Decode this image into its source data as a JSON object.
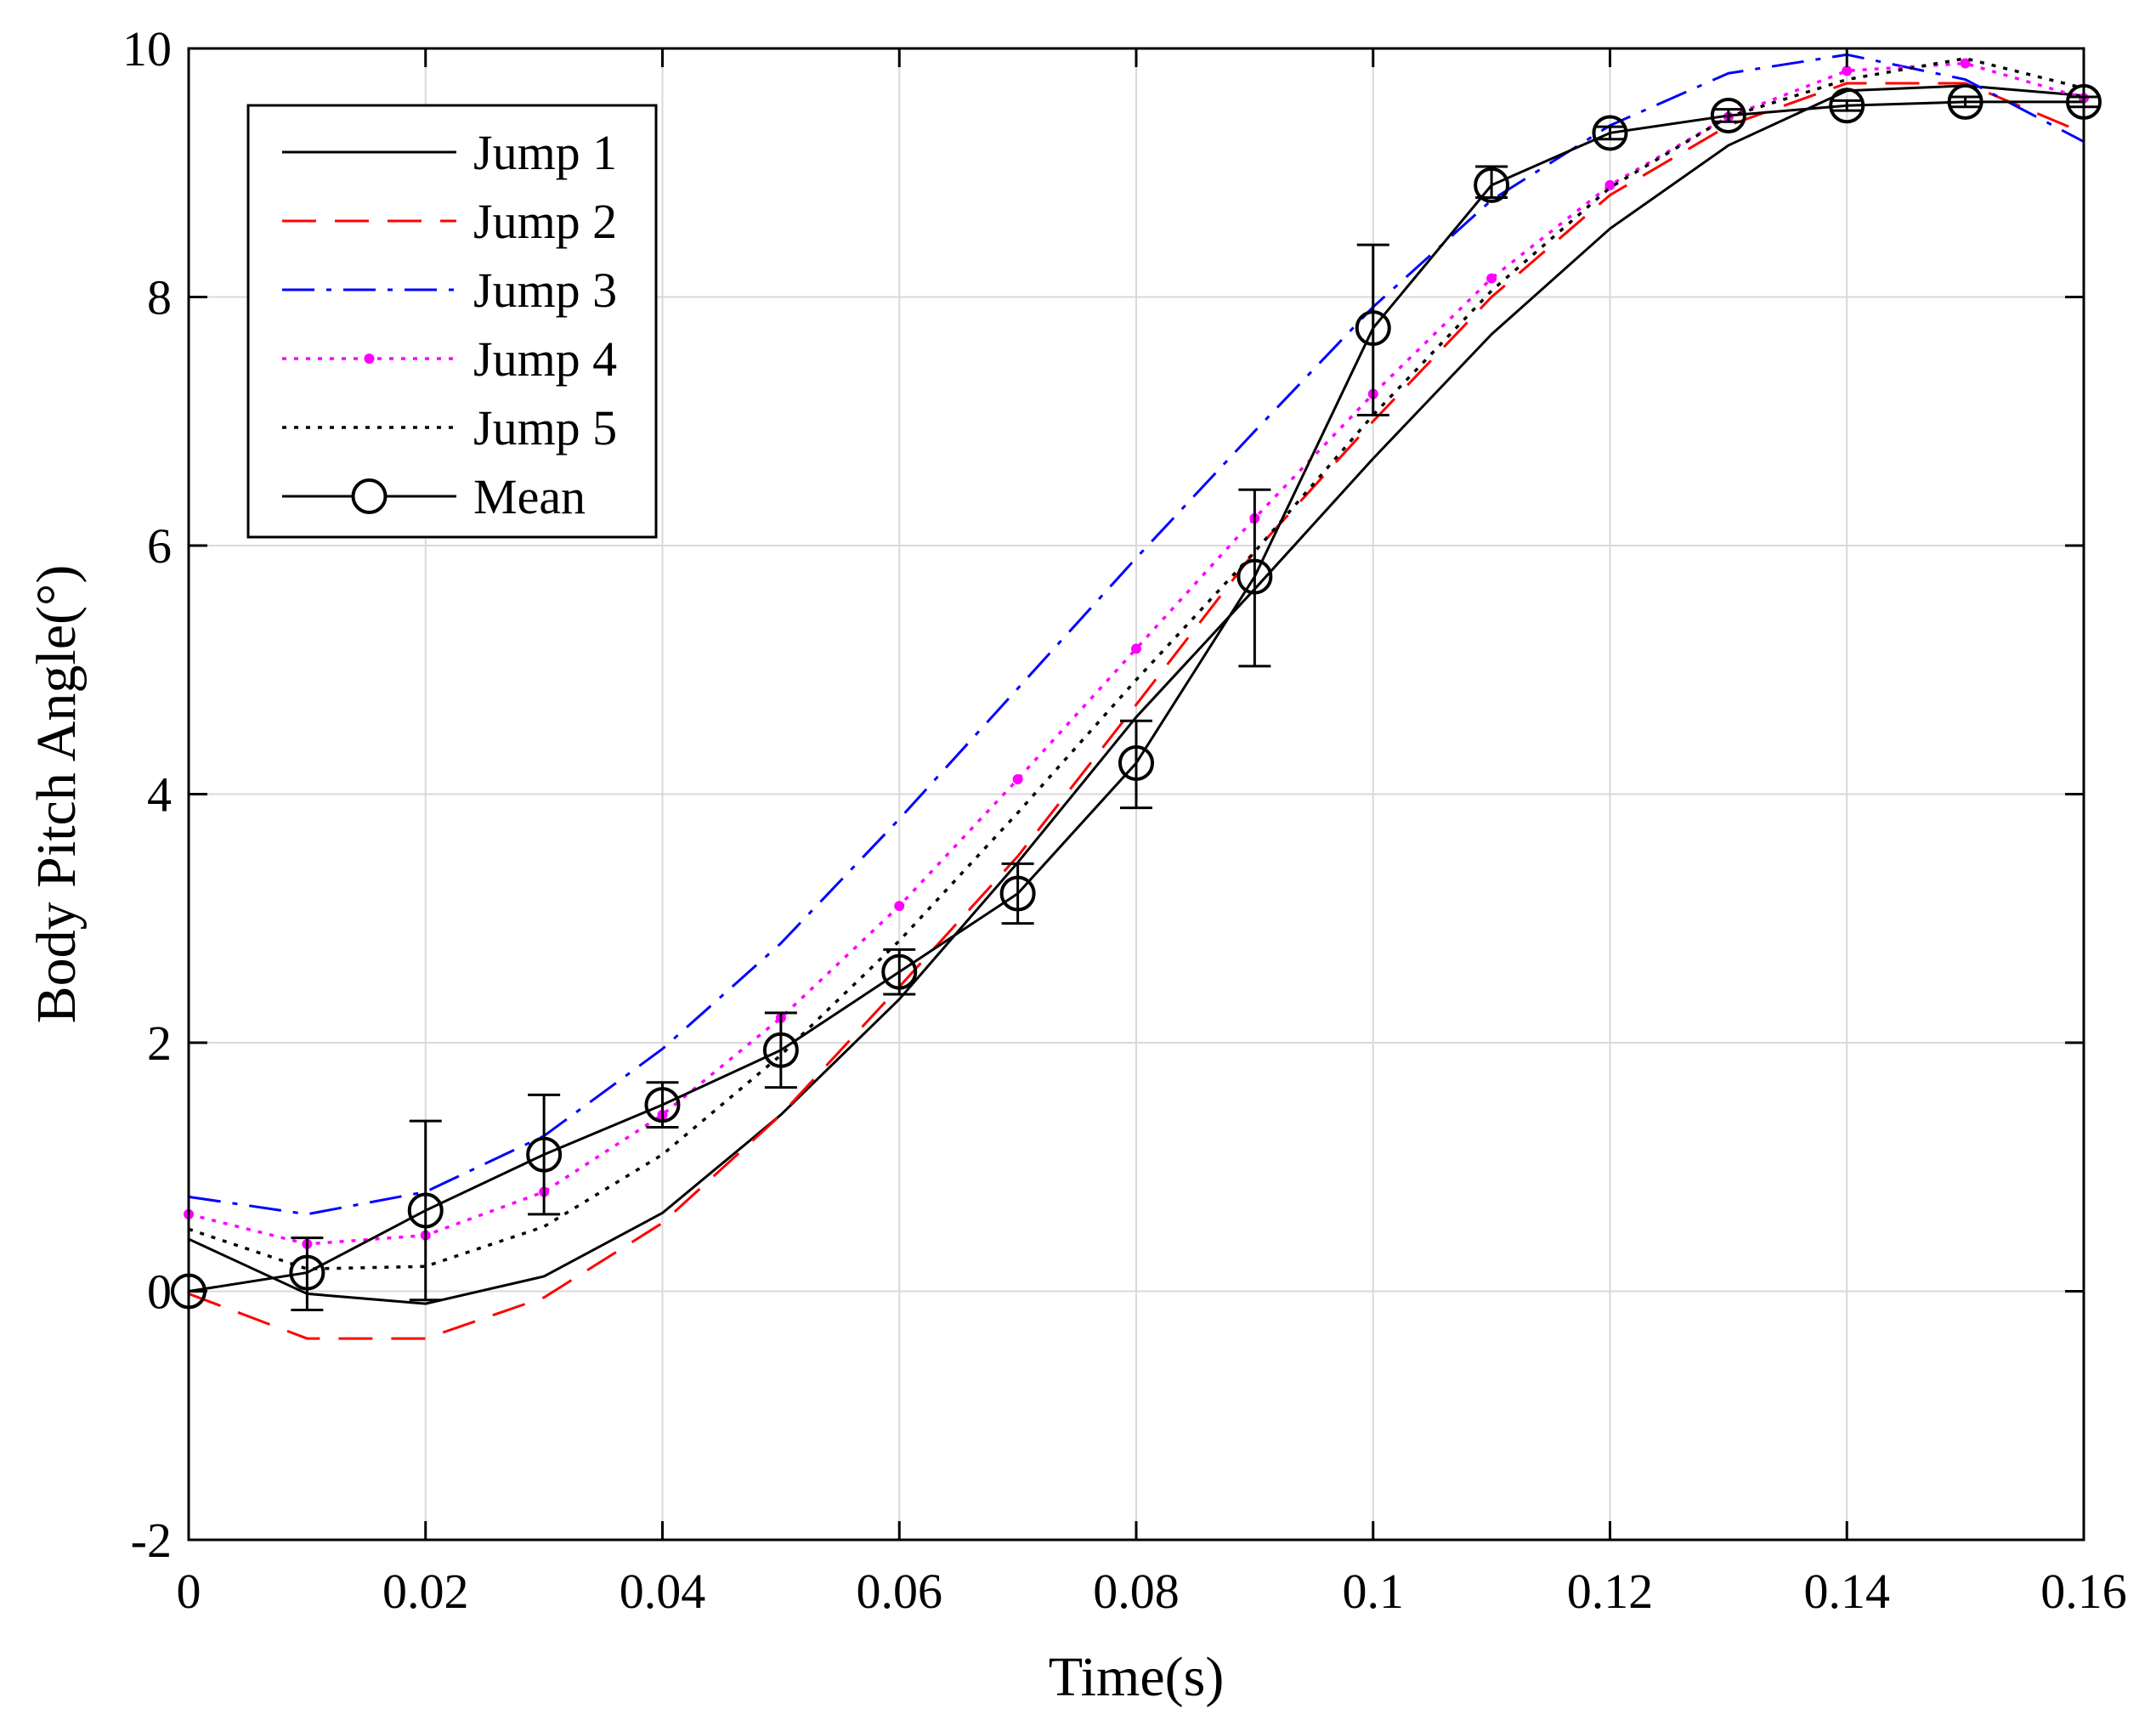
{
  "chart_data": {
    "type": "line",
    "title": "",
    "xlabel": "Time(s)",
    "ylabel": "Body Pitch Angle(°)",
    "xlim": [
      0,
      0.16
    ],
    "ylim": [
      -2,
      10
    ],
    "grid": true,
    "legend_position": "top-left",
    "x": [
      0,
      0.01,
      0.02,
      0.03,
      0.04,
      0.05,
      0.06,
      0.07,
      0.08,
      0.09,
      0.1,
      0.11,
      0.12,
      0.13,
      0.14,
      0.15,
      0.16
    ],
    "x_ticks": [
      "0",
      "0.02",
      "0.04",
      "0.06",
      "0.08",
      "0.1",
      "0.12",
      "0.14",
      "0.16"
    ],
    "x_tick_values": [
      0,
      0.02,
      0.04,
      0.06,
      0.08,
      0.1,
      0.12,
      0.14,
      0.16
    ],
    "y_ticks": [
      "-2",
      "0",
      "2",
      "4",
      "6",
      "8",
      "10"
    ],
    "y_tick_values": [
      -2,
      0,
      2,
      4,
      6,
      8,
      10
    ],
    "series": [
      {
        "name": "Jump 1",
        "color": "#000000",
        "style": "solid",
        "marker": "none",
        "values": [
          0.42,
          -0.02,
          -0.1,
          0.12,
          0.63,
          1.42,
          2.35,
          3.45,
          4.62,
          5.65,
          6.7,
          7.7,
          8.55,
          9.22,
          9.66,
          9.7,
          9.62
        ]
      },
      {
        "name": "Jump 2",
        "color": "#ff0000",
        "style": "dash",
        "marker": "none",
        "values": [
          -0.02,
          -0.38,
          -0.38,
          -0.05,
          0.55,
          1.42,
          2.45,
          3.5,
          4.72,
          5.95,
          7.0,
          8.0,
          8.82,
          9.38,
          9.72,
          9.72,
          9.32
        ]
      },
      {
        "name": "Jump 3",
        "color": "#0000ff",
        "style": "dashdot",
        "marker": "none",
        "values": [
          0.76,
          0.62,
          0.8,
          1.25,
          1.95,
          2.8,
          3.8,
          4.85,
          5.9,
          6.92,
          7.92,
          8.78,
          9.38,
          9.8,
          9.95,
          9.75,
          9.25
        ]
      },
      {
        "name": "Jump 4",
        "color": "#ff00ff",
        "style": "dot",
        "marker": "dot",
        "values": [
          0.62,
          0.38,
          0.45,
          0.8,
          1.42,
          2.2,
          3.1,
          4.12,
          5.17,
          6.22,
          7.22,
          8.15,
          8.9,
          9.45,
          9.82,
          9.88,
          9.6
        ]
      },
      {
        "name": "Jump 5",
        "color": "#000000",
        "style": "dot",
        "marker": "none",
        "values": [
          0.5,
          0.18,
          0.2,
          0.52,
          1.1,
          1.9,
          2.82,
          3.85,
          4.92,
          5.95,
          7.05,
          8.05,
          8.88,
          9.45,
          9.75,
          9.92,
          9.68
        ]
      },
      {
        "name": "Mean",
        "color": "#000000",
        "style": "solid",
        "marker": "circle",
        "values": [
          0.0,
          0.15,
          0.65,
          1.1,
          1.5,
          1.94,
          2.57,
          3.2,
          4.25,
          5.75,
          7.75,
          8.9,
          9.32,
          9.46,
          9.54,
          9.57,
          9.57
        ],
        "error_low": [
          0.0,
          0.3,
          0.72,
          0.48,
          0.18,
          0.3,
          0.18,
          0.24,
          0.36,
          0.72,
          0.7,
          0.1,
          0.05,
          0.05,
          0.04,
          0.04,
          0.04
        ],
        "error_high": [
          0.0,
          0.28,
          0.72,
          0.48,
          0.18,
          0.3,
          0.18,
          0.24,
          0.34,
          0.7,
          0.67,
          0.15,
          0.05,
          0.05,
          0.04,
          0.04,
          0.04
        ]
      }
    ]
  }
}
